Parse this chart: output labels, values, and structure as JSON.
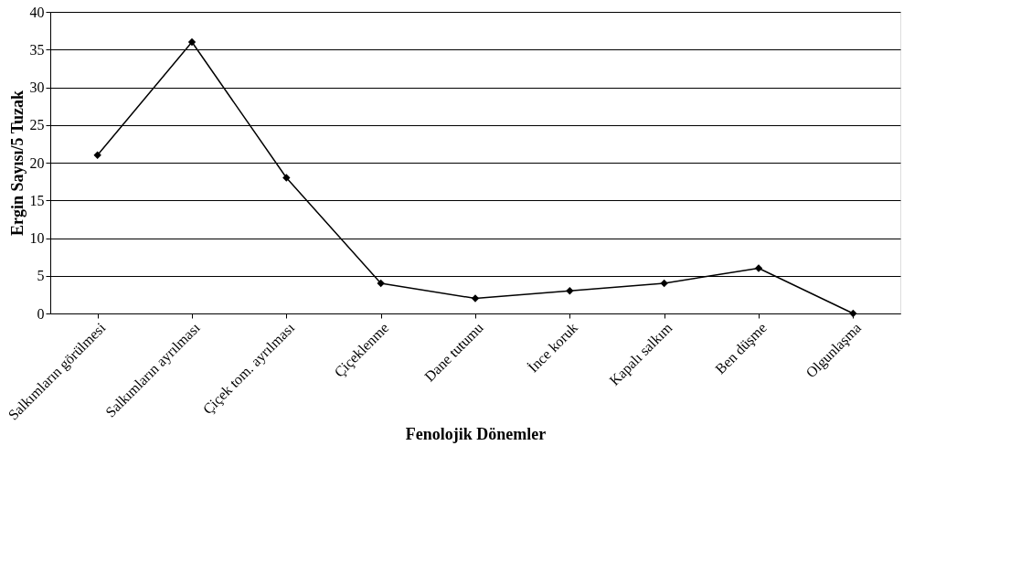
{
  "chart_data": {
    "type": "line",
    "xlabel": "Fenolojik Dönemler",
    "ylabel": "Ergin Sayısı/5 Tuzak",
    "categories": [
      "Salkımların görülmesi",
      "Salkımların ayrılması",
      "Çiçek tom. ayrılması",
      "Çiçeklenme",
      "Dane tutumu",
      "İnce koruk",
      "Kapalı salkım",
      "Ben düşme",
      "Olgunlaşma"
    ],
    "series": [
      {
        "color": "#000000",
        "values": [
          21,
          36,
          18,
          4,
          2,
          3,
          4,
          6,
          0
        ]
      }
    ],
    "ylim": [
      0,
      40
    ],
    "yticks": [
      0,
      5,
      10,
      15,
      20,
      25,
      30,
      35,
      40
    ],
    "grid": "y",
    "marker": "diamond",
    "line_style": "solid",
    "legend": false
  }
}
